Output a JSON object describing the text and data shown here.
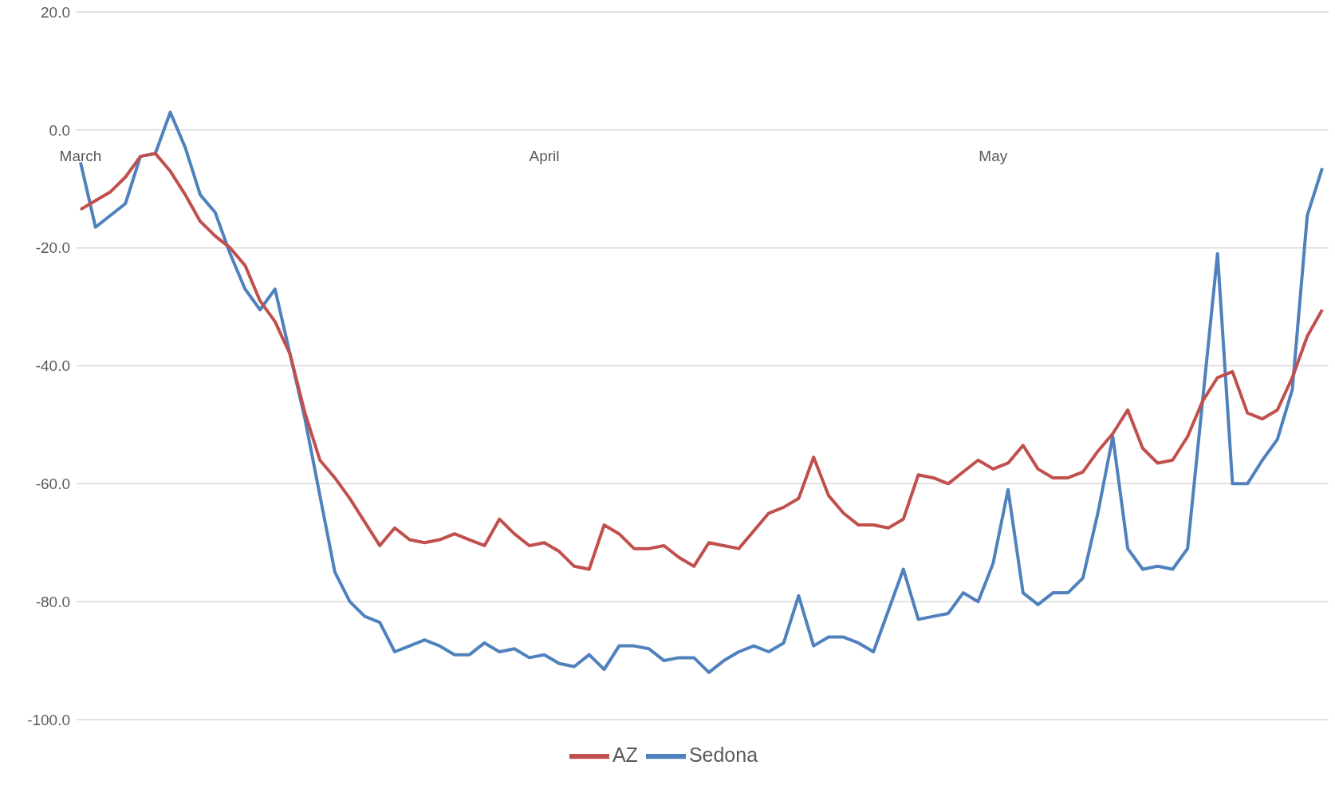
{
  "chart_data": {
    "type": "line",
    "categories": [
      "March",
      null,
      null,
      null,
      null,
      null,
      null,
      null,
      null,
      null,
      null,
      null,
      null,
      null,
      null,
      null,
      null,
      null,
      null,
      null,
      null,
      null,
      null,
      null,
      null,
      null,
      null,
      null,
      null,
      null,
      null,
      "April",
      null,
      null,
      null,
      null,
      null,
      null,
      null,
      null,
      null,
      null,
      null,
      null,
      null,
      null,
      null,
      null,
      null,
      null,
      null,
      null,
      null,
      null,
      null,
      null,
      null,
      null,
      null,
      null,
      null,
      "May",
      null,
      null,
      null,
      null,
      null,
      null,
      null,
      null,
      null,
      null,
      null,
      null,
      null,
      null,
      null,
      null,
      null,
      null,
      null,
      null,
      null,
      null
    ],
    "series": [
      {
        "name": "Sedona",
        "color": "#4f81bd",
        "values": [
          -5.5,
          -16.5,
          -14.5,
          -12.5,
          -4.5,
          -4,
          3,
          -3,
          -11,
          -14,
          -21,
          -27,
          -30.5,
          -27,
          -38,
          -49,
          -62,
          -75,
          -80,
          -82.5,
          -83.5,
          -88.5,
          -87.5,
          -86.5,
          -87.5,
          -89,
          -89,
          -87,
          -88.5,
          -88,
          -89.5,
          -89,
          -90.5,
          -91,
          -89,
          -91.5,
          -87.5,
          -87.5,
          -88,
          -90,
          -89.5,
          -89.5,
          -92,
          -90,
          -88.5,
          -87.5,
          -88.5,
          -87,
          -79,
          -87.5,
          -86,
          -86,
          -87,
          -88.5,
          -81.5,
          -74.5,
          -83,
          -82.5,
          -82,
          -78.5,
          -80,
          -73.5,
          -61,
          -78.5,
          -80.5,
          -78.5,
          -78.5,
          -76,
          -65,
          -52,
          -71,
          -74.5,
          -74,
          -74.5,
          -71,
          -46,
          -21,
          -60,
          -60,
          -56,
          -52.5,
          -44,
          -14.5,
          -6.5
        ]
      },
      {
        "name": "AZ",
        "color": "#c0504d",
        "values": [
          -13.5,
          -12,
          -10.5,
          -8,
          -4.5,
          -4,
          -7,
          -11,
          -15.5,
          -18,
          -20,
          -23,
          -29,
          -32.5,
          -38,
          -48,
          -56,
          -59,
          -62.5,
          -66.5,
          -70.5,
          -67.5,
          -69.5,
          -70,
          -69.5,
          -68.5,
          -69.5,
          -70.5,
          -66,
          -68.5,
          -70.5,
          -70,
          -71.5,
          -74,
          -74.5,
          -67,
          -68.5,
          -71,
          -71,
          -70.5,
          -72.5,
          -74,
          -70,
          -70.5,
          -71,
          -68,
          -65,
          -64,
          -62.5,
          -55.5,
          -62,
          -65,
          -67,
          -67,
          -67.5,
          -66,
          -58.5,
          -59,
          -60,
          -58,
          -56,
          -57.5,
          -56.5,
          -53.5,
          -57.5,
          -59,
          -59,
          -58,
          -54.5,
          -51.5,
          -47.5,
          -54,
          -56.5,
          -56,
          -52,
          -46,
          -42,
          -41,
          -48,
          -49,
          -47.5,
          -42,
          -35,
          -30.5
        ]
      }
    ],
    "ylim": [
      -100,
      20
    ],
    "yticks": [
      {
        "value": -100,
        "label": "-100.0"
      },
      {
        "value": -80,
        "label": "-80.0"
      },
      {
        "value": -60,
        "label": "-60.0"
      },
      {
        "value": -40,
        "label": "-40.0"
      },
      {
        "value": -20,
        "label": "-20.0"
      },
      {
        "value": 0,
        "label": "0.0"
      },
      {
        "value": 20,
        "label": "20.0"
      }
    ],
    "grid": "y",
    "legend": "bottom",
    "marker": "none",
    "line_style": "solid"
  }
}
